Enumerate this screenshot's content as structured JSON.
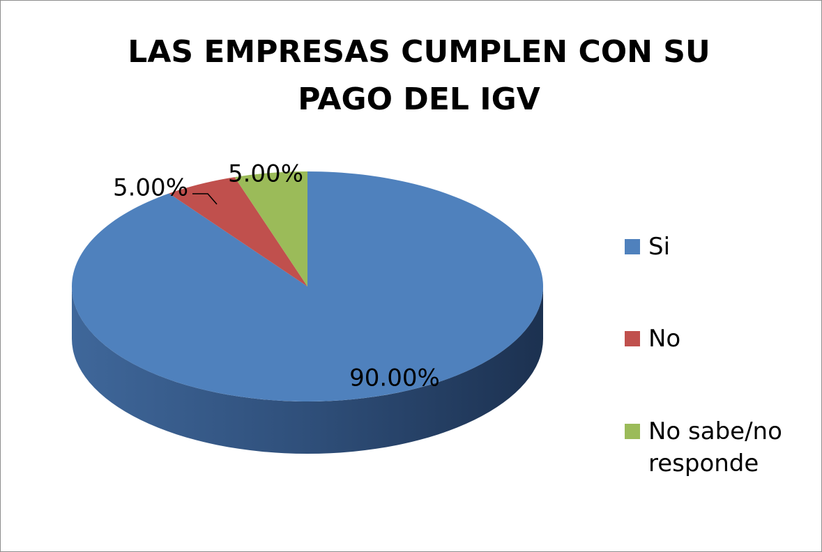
{
  "chart_data": {
    "type": "pie",
    "title": "LAS EMPRESAS CUMPLEN CON SU PAGO DEL IGV",
    "categories": [
      "Si",
      "No",
      "No sabe/no responde"
    ],
    "values": [
      90,
      5,
      5
    ],
    "value_labels": [
      "90.00%",
      "5.00%",
      "5.00%"
    ],
    "colors": [
      "#4f81bd",
      "#c0504d",
      "#9bbb59"
    ],
    "legend": "right"
  }
}
